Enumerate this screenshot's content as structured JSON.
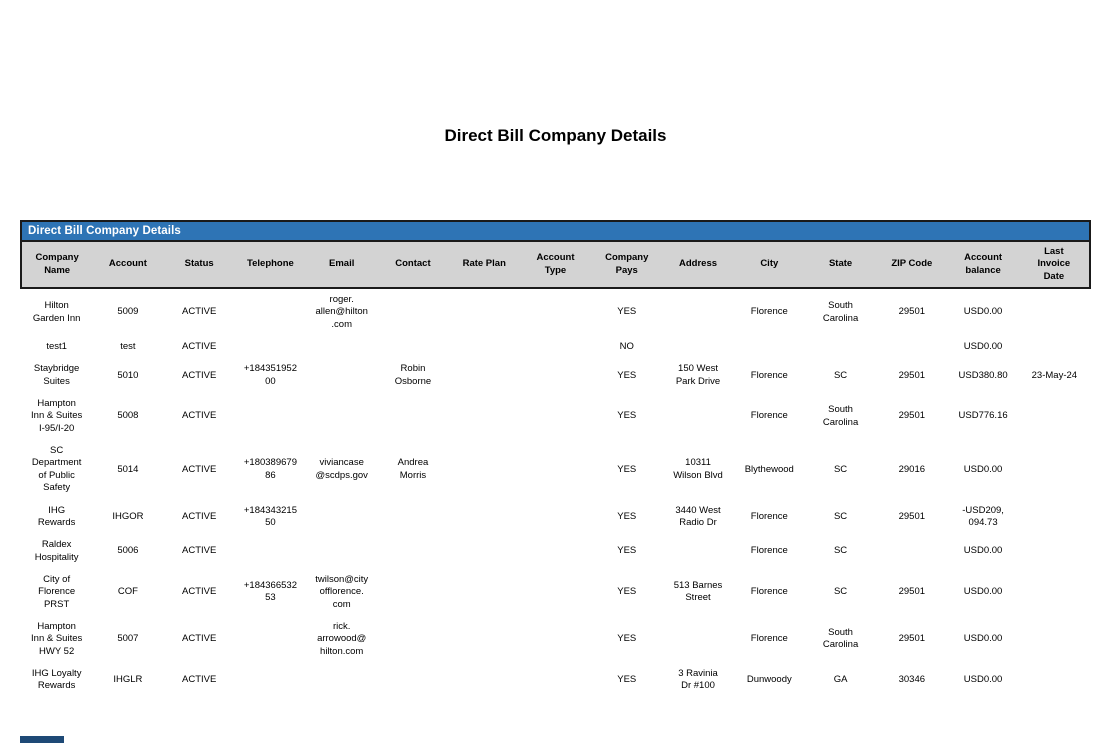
{
  "page_title": "Direct Bill Company Details",
  "section": {
    "title": "Direct Bill Company Details"
  },
  "colors": {
    "title_bar": "#2E74B5",
    "header_bg": "#D3D3D3",
    "border": "#1A1A1A",
    "fragment": "#1E4976"
  },
  "columns": [
    {
      "id": "company_name",
      "label": "Company\nName"
    },
    {
      "id": "account",
      "label": "Account"
    },
    {
      "id": "status",
      "label": "Status"
    },
    {
      "id": "telephone",
      "label": "Telephone"
    },
    {
      "id": "email",
      "label": "Email"
    },
    {
      "id": "contact",
      "label": "Contact"
    },
    {
      "id": "rate_plan",
      "label": "Rate Plan"
    },
    {
      "id": "account_type",
      "label": "Account\nType"
    },
    {
      "id": "company_pays",
      "label": "Company\nPays"
    },
    {
      "id": "address",
      "label": "Address"
    },
    {
      "id": "city",
      "label": "City"
    },
    {
      "id": "state",
      "label": "State"
    },
    {
      "id": "zip_code",
      "label": "ZIP Code"
    },
    {
      "id": "account_balance",
      "label": "Account\nbalance"
    },
    {
      "id": "last_invoice_date",
      "label": "Last\nInvoice\nDate"
    }
  ],
  "rows": [
    {
      "cells": [
        "Hilton\nGarden Inn",
        "5009",
        "ACTIVE",
        "",
        "roger.\nallen@hilton\n.com",
        "",
        "",
        "",
        "YES",
        "",
        "Florence",
        "South\nCarolina",
        "29501",
        "USD0.00",
        ""
      ]
    },
    {
      "cells": [
        "test1",
        "test",
        "ACTIVE",
        "",
        "",
        "",
        "",
        "",
        "NO",
        "",
        "",
        "",
        "",
        "USD0.00",
        ""
      ]
    },
    {
      "cells": [
        "Staybridge\nSuites",
        "5010",
        "ACTIVE",
        "+184351952\n00",
        "",
        "Robin\nOsborne",
        "",
        "",
        "YES",
        "150 West\nPark Drive",
        "Florence",
        "SC",
        "29501",
        "USD380.80",
        "23-May-24"
      ]
    },
    {
      "cells": [
        "Hampton\nInn & Suites\nI-95/I-20",
        "5008",
        "ACTIVE",
        "",
        "",
        "",
        "",
        "",
        "YES",
        "",
        "Florence",
        "South\nCarolina",
        "29501",
        "USD776.16",
        ""
      ]
    },
    {
      "cells": [
        "SC\nDepartment\nof Public\nSafety",
        "5014",
        "ACTIVE",
        "+180389679\n86",
        "viviancase\n@scdps.gov",
        "Andrea\nMorris",
        "",
        "",
        "YES",
        "10311\nWilson Blvd",
        "Blythewood",
        "SC",
        "29016",
        "USD0.00",
        ""
      ]
    },
    {
      "cells": [
        "IHG\nRewards",
        "IHGOR",
        "ACTIVE",
        "+184343215\n50",
        "",
        "",
        "",
        "",
        "YES",
        "3440 West\nRadio Dr",
        "Florence",
        "SC",
        "29501",
        "-USD209,\n094.73",
        ""
      ]
    },
    {
      "cells": [
        "Raldex\nHospitality",
        "5006",
        "ACTIVE",
        "",
        "",
        "",
        "",
        "",
        "YES",
        "",
        "Florence",
        "SC",
        "",
        "USD0.00",
        ""
      ]
    },
    {
      "cells": [
        "City of\nFlorence\nPRST",
        "COF",
        "ACTIVE",
        "+184366532\n53",
        "twilson@city\nofflorence.\ncom",
        "",
        "",
        "",
        "YES",
        "513 Barnes\nStreet",
        "Florence",
        "SC",
        "29501",
        "USD0.00",
        ""
      ]
    },
    {
      "cells": [
        "Hampton\nInn & Suites\nHWY 52",
        "5007",
        "ACTIVE",
        "",
        "rick.\narrowood@\nhilton.com",
        "",
        "",
        "",
        "YES",
        "",
        "Florence",
        "South\nCarolina",
        "29501",
        "USD0.00",
        ""
      ]
    },
    {
      "cells": [
        "IHG Loyalty\nRewards",
        "IHGLR",
        "ACTIVE",
        "",
        "",
        "",
        "",
        "",
        "YES",
        "3 Ravinia\nDr #100",
        "Dunwoody",
        "GA",
        "30346",
        "USD0.00",
        ""
      ]
    }
  ]
}
